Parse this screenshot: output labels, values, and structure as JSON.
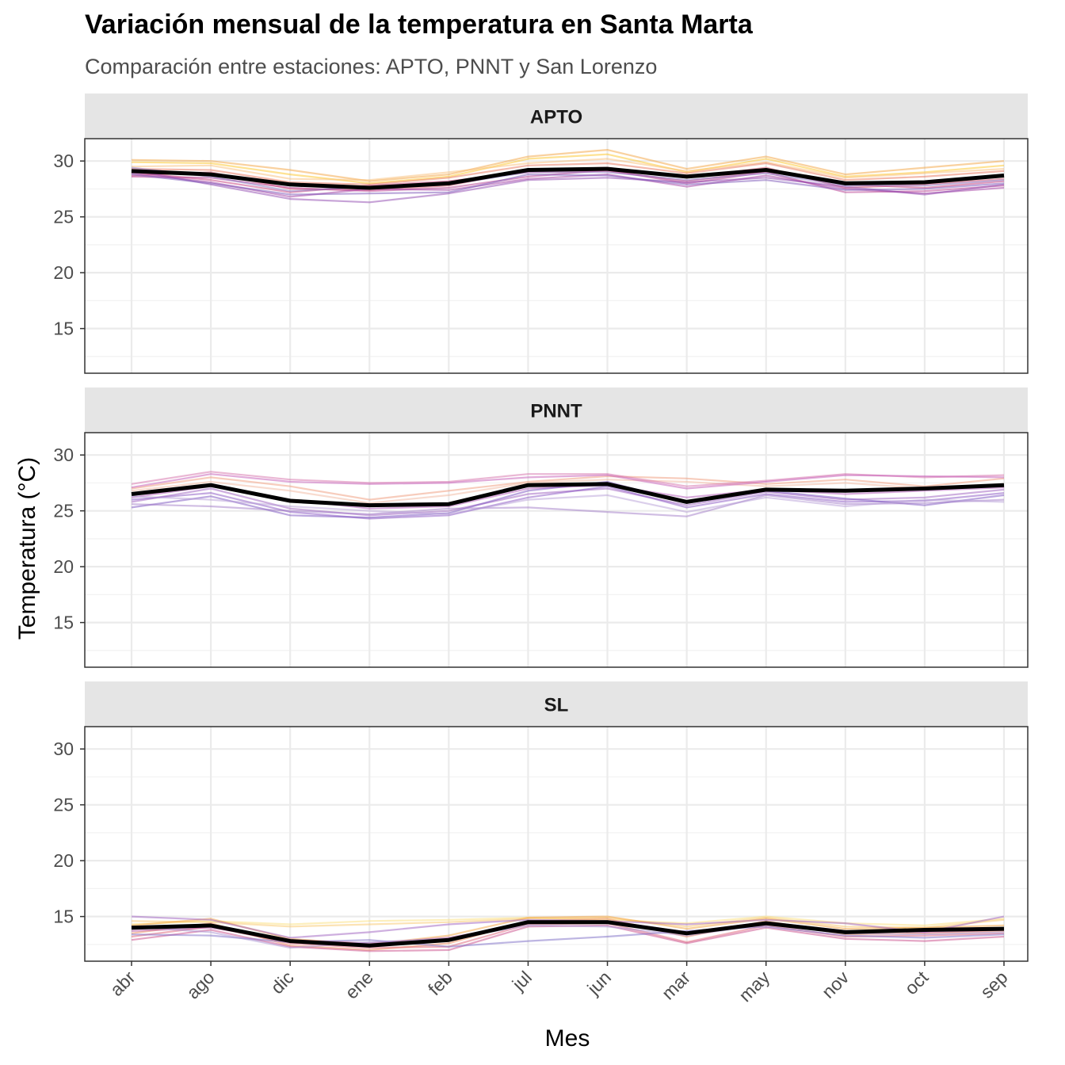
{
  "chart_data": {
    "type": "line",
    "title": "Variación mensual de la temperatura en Santa Marta",
    "subtitle": "Comparación entre estaciones: APTO, PNNT y San Lorenzo",
    "xlabel": "Mes",
    "ylabel": "Temperatura (°C)",
    "categories": [
      "abr",
      "ago",
      "dic",
      "ene",
      "feb",
      "jul",
      "jun",
      "mar",
      "may",
      "nov",
      "oct",
      "sep"
    ],
    "ylim": [
      11,
      32
    ],
    "yticks": [
      15,
      20,
      25,
      30
    ],
    "grid": true,
    "legend": "none",
    "colors": {
      "mean": "#000000",
      "panel_strip": "#e5e5e5",
      "grid": "#ebebeb",
      "border": "#333333"
    },
    "panels": [
      {
        "label": "APTO",
        "mean": [
          29.1,
          28.8,
          27.9,
          27.6,
          28.0,
          29.2,
          29.3,
          28.6,
          29.2,
          28.0,
          28.1,
          28.7
        ],
        "traces": [
          {
            "color": "#f4a340",
            "values": [
              30.1,
              30.0,
              29.2,
              28.2,
              28.8,
              30.4,
              31.0,
              29.3,
              30.4,
              28.8,
              29.4,
              30.0
            ]
          },
          {
            "color": "#fdc527",
            "values": [
              29.9,
              29.8,
              28.8,
              28.0,
              28.6,
              30.2,
              30.6,
              29.0,
              30.2,
              28.6,
              29.0,
              29.6
            ]
          },
          {
            "color": "#f9c07a",
            "values": [
              29.5,
              29.6,
              28.4,
              28.3,
              29.0,
              29.8,
              30.2,
              29.1,
              29.9,
              28.5,
              28.9,
              29.3
            ]
          },
          {
            "color": "#e8745a",
            "values": [
              29.3,
              29.2,
              28.1,
              27.9,
              28.5,
              29.6,
              29.8,
              28.9,
              29.8,
              28.3,
              28.6,
              29.1
            ]
          },
          {
            "color": "#d9506b",
            "values": [
              28.7,
              29.0,
              27.5,
              27.4,
              27.8,
              29.2,
              29.4,
              28.5,
              29.4,
              27.6,
              27.9,
              28.4
            ]
          },
          {
            "color": "#c73e7b",
            "values": [
              29.0,
              28.3,
              27.2,
              27.8,
              28.2,
              29.0,
              29.1,
              28.2,
              29.1,
              27.9,
              27.6,
              28.2
            ]
          },
          {
            "color": "#b83b8f",
            "values": [
              28.6,
              28.5,
              27.6,
              27.3,
              27.6,
              28.6,
              29.2,
              28.0,
              29.0,
              27.2,
              27.3,
              27.8
            ]
          },
          {
            "color": "#a33fa3",
            "values": [
              28.9,
              28.1,
              26.8,
              27.5,
              27.4,
              28.4,
              28.8,
              27.7,
              28.7,
              27.5,
              27.1,
              27.6
            ]
          },
          {
            "color": "#9048b0",
            "values": [
              29.2,
              27.9,
              26.6,
              26.3,
              27.1,
              28.3,
              28.5,
              28.1,
              28.5,
              27.7,
              27.0,
              27.9
            ]
          },
          {
            "color": "#7c55b8",
            "values": [
              28.8,
              28.0,
              27.0,
              27.1,
              27.2,
              28.8,
              28.7,
              27.9,
              28.3,
              27.4,
              27.5,
              28.0
            ]
          },
          {
            "color": "#8a7ac6",
            "values": [
              29.4,
              28.6,
              27.3,
              27.7,
              27.9,
              29.0,
              29.0,
              28.3,
              28.9,
              27.8,
              27.8,
              28.3
            ]
          }
        ]
      },
      {
        "label": "PNNT",
        "mean": [
          26.5,
          27.3,
          25.9,
          25.5,
          25.6,
          27.3,
          27.4,
          25.8,
          26.9,
          26.8,
          27.0,
          27.3
        ],
        "traces": [
          {
            "color": "#f09a7a",
            "values": [
              27.0,
              28.0,
              27.2,
              26.0,
              26.8,
              27.6,
              28.1,
              27.9,
              27.4,
              27.8,
              27.2,
              27.9
            ]
          },
          {
            "color": "#f2b8a0",
            "values": [
              26.8,
              27.6,
              26.8,
              25.7,
              26.4,
              27.5,
              27.8,
              27.6,
              27.2,
              27.5,
              27.0,
              27.4
            ]
          },
          {
            "color": "#d670a9",
            "values": [
              27.4,
              28.5,
              27.8,
              27.5,
              27.6,
              28.3,
              28.3,
              27.2,
              27.7,
              28.3,
              28.0,
              28.2
            ]
          },
          {
            "color": "#c45ab5",
            "values": [
              27.1,
              28.3,
              27.6,
              27.4,
              27.5,
              28.0,
              28.2,
              27.0,
              27.6,
              28.2,
              28.1,
              28.0
            ]
          },
          {
            "color": "#b257b8",
            "values": [
              26.2,
              27.2,
              26.0,
              25.2,
              25.4,
              27.0,
              27.3,
              26.2,
              26.9,
              26.5,
              26.8,
              27.1
            ]
          },
          {
            "color": "#9d5fc0",
            "values": [
              25.8,
              27.0,
              25.2,
              24.6,
              25.0,
              26.5,
              27.0,
              25.5,
              26.7,
              26.0,
              26.2,
              26.9
            ]
          },
          {
            "color": "#8a55c4",
            "values": [
              26.0,
              26.6,
              24.9,
              24.3,
              24.6,
              26.2,
              27.2,
              25.3,
              26.5,
              25.8,
              25.9,
              26.6
            ]
          },
          {
            "color": "#7a52c0",
            "values": [
              25.3,
              26.3,
              24.6,
              24.4,
              24.8,
              26.8,
              27.6,
              25.7,
              26.8,
              26.1,
              25.5,
              26.4
            ]
          },
          {
            "color": "#a27cc8",
            "values": [
              25.6,
              25.4,
              25.0,
              24.7,
              25.2,
              25.3,
              24.9,
              24.5,
              26.4,
              25.6,
              25.7,
              26.0
            ]
          },
          {
            "color": "#b8a0d8",
            "values": [
              26.3,
              26.0,
              25.4,
              25.0,
              24.7,
              26.0,
              26.4,
              24.9,
              26.2,
              25.4,
              26.0,
              25.8
            ]
          }
        ]
      },
      {
        "label": "SL",
        "mean": [
          14.0,
          14.2,
          12.8,
          12.4,
          12.9,
          14.5,
          14.5,
          13.5,
          14.4,
          13.6,
          13.8,
          13.9
        ],
        "traces": [
          {
            "color": "#fbe07c",
            "values": [
              14.3,
              14.6,
              14.3,
              14.6,
              14.7,
              14.9,
              14.7,
              14.4,
              15.0,
              14.4,
              14.2,
              14.8
            ]
          },
          {
            "color": "#f9c86a",
            "values": [
              14.6,
              14.5,
              14.1,
              14.3,
              14.5,
              14.8,
              14.9,
              14.1,
              14.9,
              14.1,
              14.0,
              14.7
            ]
          },
          {
            "color": "#f4a340",
            "values": [
              14.2,
              14.8,
              13.0,
              12.5,
              13.3,
              14.9,
              15.0,
              13.9,
              14.8,
              13.9,
              14.0,
              14.2
            ]
          },
          {
            "color": "#ef8a5a",
            "values": [
              13.5,
              14.4,
              12.4,
              12.0,
              12.6,
              14.6,
              14.8,
              13.2,
              14.6,
              13.4,
              13.5,
              13.7
            ]
          },
          {
            "color": "#e06478",
            "values": [
              13.2,
              14.1,
              12.6,
              12.2,
              12.3,
              14.3,
              14.4,
              12.7,
              14.2,
              13.2,
              13.3,
              13.5
            ]
          },
          {
            "color": "#c94c8a",
            "values": [
              12.9,
              13.8,
              12.3,
              11.9,
              12.0,
              14.1,
              14.2,
              12.6,
              14.0,
              13.0,
              12.8,
              13.2
            ]
          },
          {
            "color": "#b04a9e",
            "values": [
              13.7,
              14.0,
              12.9,
              12.6,
              13.1,
              14.4,
              14.6,
              13.6,
              14.5,
              13.7,
              13.6,
              13.8
            ]
          },
          {
            "color": "#9d5fc0",
            "values": [
              15.0,
              14.7,
              13.1,
              13.6,
              14.3,
              14.7,
              14.6,
              14.3,
              14.7,
              14.4,
              13.6,
              15.0
            ]
          },
          {
            "color": "#7b6cc6",
            "values": [
              13.4,
              13.3,
              12.7,
              12.9,
              12.3,
              12.8,
              13.2,
              13.7,
              14.1,
              13.3,
              13.1,
              13.4
            ]
          },
          {
            "color": "#a993d4",
            "values": [
              14.1,
              13.6,
              12.2,
              12.7,
              13.0,
              14.2,
              14.1,
              13.3,
              14.3,
              13.5,
              13.4,
              13.6
            ]
          }
        ]
      }
    ]
  }
}
